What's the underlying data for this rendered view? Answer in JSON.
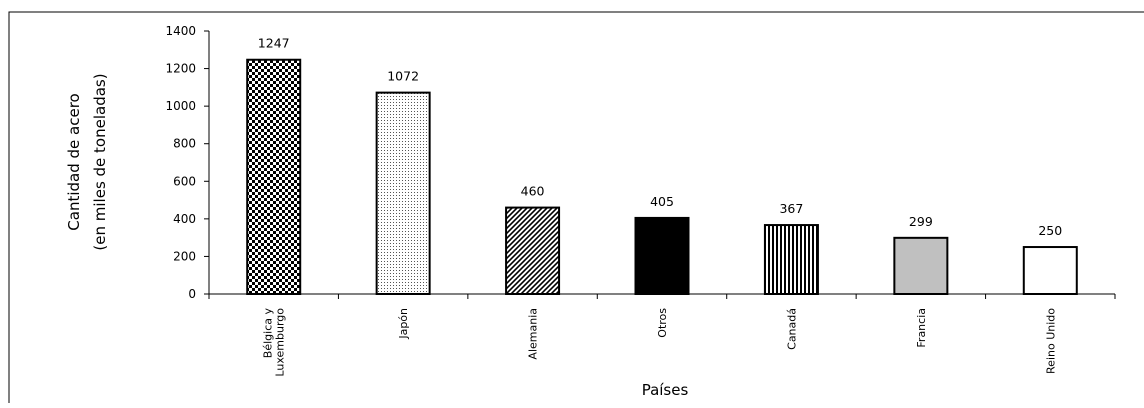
{
  "chart_data": {
    "type": "bar",
    "categories": [
      "Bélgica y Luxemburgo",
      "Japón",
      "Alemania",
      "Otros",
      "Canadá",
      "Francia",
      "Reino Unido"
    ],
    "category_lines": [
      [
        "Bélgica y",
        "Luxemburgo"
      ],
      [
        "Japón"
      ],
      [
        "Alemania"
      ],
      [
        "Otros"
      ],
      [
        "Canadá"
      ],
      [
        "Francia"
      ],
      [
        "Reino Unido"
      ]
    ],
    "values": [
      1247,
      1072,
      460,
      405,
      367,
      299,
      250
    ],
    "bar_fills": [
      "checker",
      "dots",
      "diagonal",
      "solid-black",
      "vertical-lines",
      "solid-gray",
      "white"
    ],
    "xlabel": "Países",
    "ylabel_lines": [
      "Cantidad de acero",
      "(en miles de toneladas)"
    ],
    "ylim": [
      0,
      1400
    ],
    "yticks": [
      0,
      200,
      400,
      600,
      800,
      1000,
      1200,
      1400
    ],
    "grid": false,
    "legend": "none"
  }
}
